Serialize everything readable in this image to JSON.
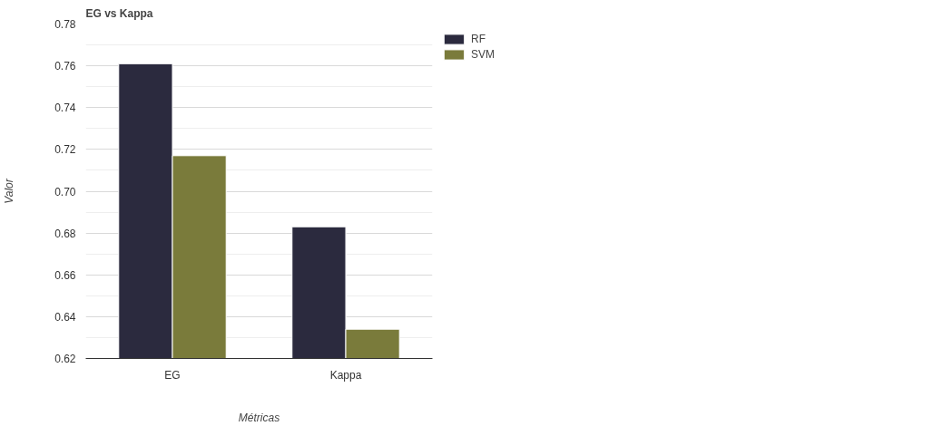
{
  "chart_data": {
    "type": "bar",
    "title": "EG vs Kappa",
    "xlabel": "Métricas",
    "ylabel": "Valor",
    "categories": [
      "EG",
      "Kappa"
    ],
    "series": [
      {
        "name": "RF",
        "color": "#2b2a3e",
        "values": [
          0.761,
          0.683
        ]
      },
      {
        "name": "SVM",
        "color": "#7a7b3b",
        "values": [
          0.717,
          0.634
        ]
      }
    ],
    "ylim": [
      0.62,
      0.78
    ],
    "yticks": [
      {
        "value": 0.62,
        "label": "0.62"
      },
      {
        "value": 0.64,
        "label": "0.64"
      },
      {
        "value": 0.66,
        "label": "0.66"
      },
      {
        "value": 0.68,
        "label": "0.68"
      },
      {
        "value": 0.7,
        "label": "0.70"
      },
      {
        "value": 0.72,
        "label": "0.72"
      },
      {
        "value": 0.74,
        "label": "0.74"
      },
      {
        "value": 0.76,
        "label": "0.76"
      },
      {
        "value": 0.78,
        "label": "0.78"
      }
    ],
    "grid": "y",
    "legend": "top right"
  }
}
